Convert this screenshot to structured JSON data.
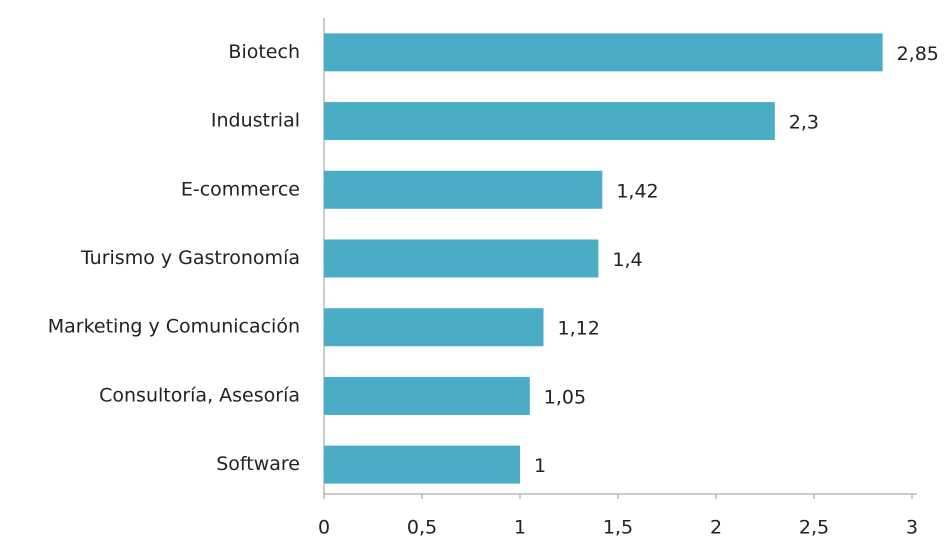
{
  "chart_data": {
    "type": "barh",
    "categories": [
      "Biotech",
      "Industrial",
      "E-commerce",
      "Turismo y Gastronomía",
      "Marketing y Comunicación",
      "Consultoría, Asesoría",
      "Software"
    ],
    "values": [
      2.85,
      2.3,
      1.42,
      1.4,
      1.12,
      1.05,
      1
    ],
    "value_labels": [
      "2,85",
      "2,3",
      "1,42",
      "1,4",
      "1,12",
      "1,05",
      "1"
    ],
    "color": "#4bacc6",
    "xlim": [
      0,
      3
    ],
    "xticks": [
      0,
      {
        "value": 0.5,
        "label": "0,5"
      },
      1,
      {
        "value": 1.5,
        "label": "1,5"
      },
      2,
      {
        "value": 2.5,
        "label": "2,5"
      },
      3
    ],
    "grid": false
  }
}
